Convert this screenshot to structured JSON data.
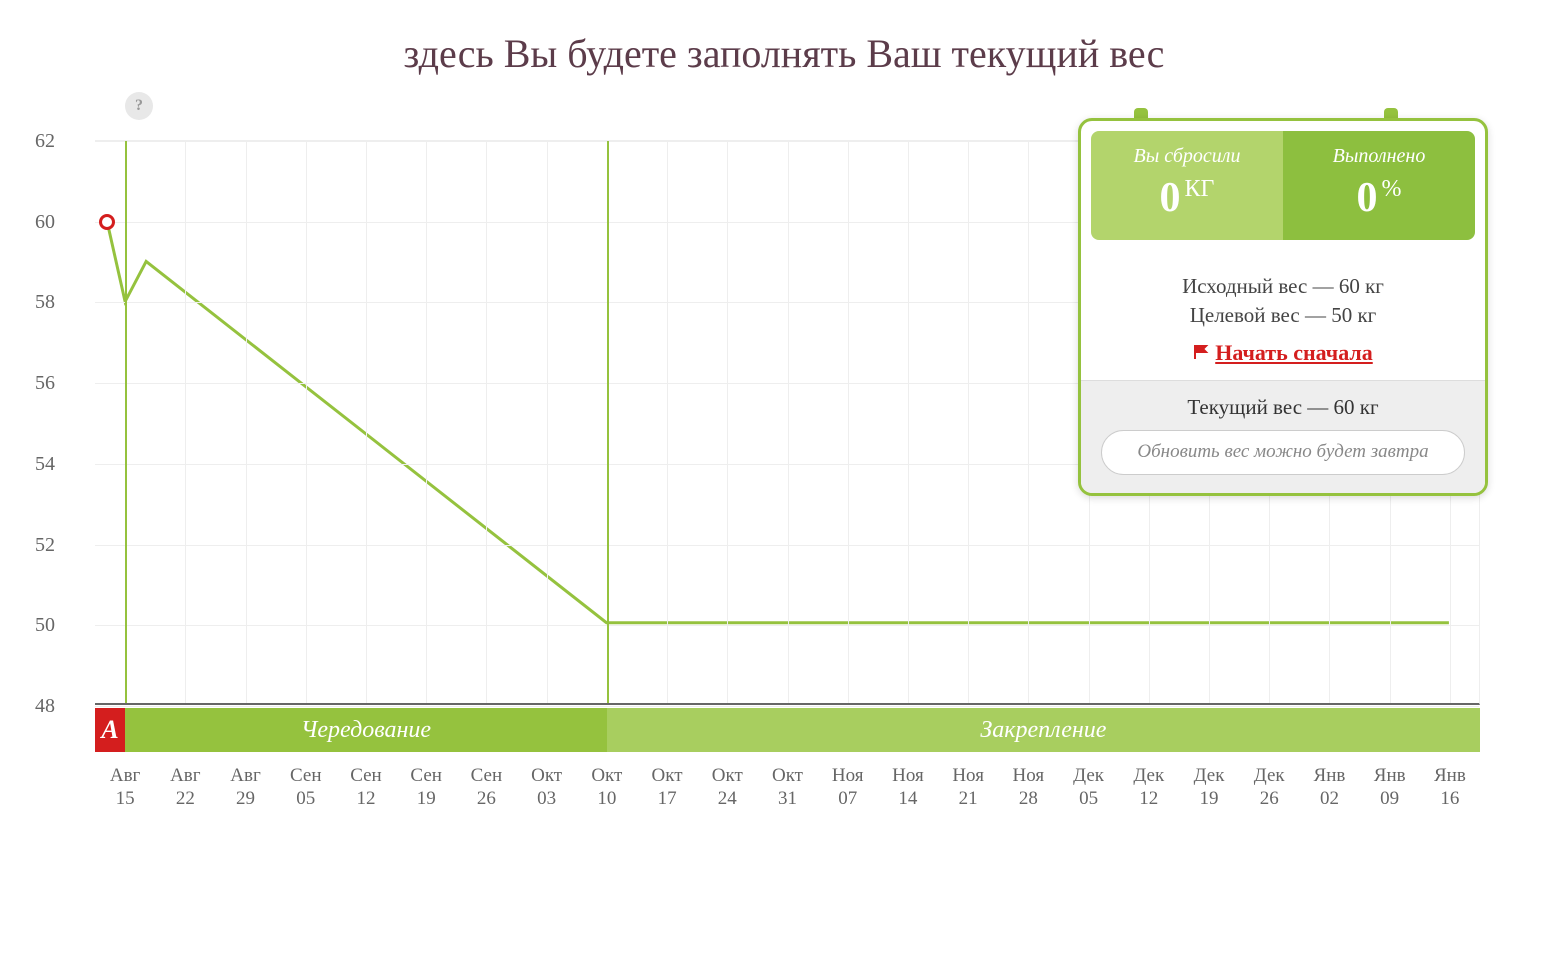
{
  "title": "здесь Вы будете заполнять Ваш текущий вес",
  "help_label": "?",
  "chart": {
    "type": "line",
    "ylim": [
      48,
      62
    ],
    "ytick_step": 2,
    "yticks": [
      48,
      50,
      52,
      54,
      56,
      58,
      60,
      62
    ],
    "grid_color": "#eeeeee",
    "background_color": "#ffffff",
    "phase_line_color": "#95c23e",
    "line_color": "#95c23e",
    "line_width": 3,
    "marker_color": "#d41e1e",
    "categories": [
      "Авг 15",
      "Авг 22",
      "Авг 29",
      "Сен 05",
      "Сен 12",
      "Сен 19",
      "Сен 26",
      "Окт 03",
      "Окт 10",
      "Окт 17",
      "Окт 24",
      "Окт 31",
      "Ноя 07",
      "Ноя 14",
      "Ноя 21",
      "Ноя 28",
      "Дек 05",
      "Дек 12",
      "Дек 19",
      "Дек 26",
      "Янв 02",
      "Янв 09",
      "Янв 16"
    ],
    "series": [
      {
        "x_idx": -0.3,
        "y": 60,
        "marker": true
      },
      {
        "x_idx": 0,
        "y": 58
      },
      {
        "x_idx": 0.35,
        "y": 59
      },
      {
        "x_idx": 8,
        "y": 50
      },
      {
        "x_idx": 22,
        "y": 50
      }
    ],
    "phase_boundaries_idx": [
      0,
      8
    ],
    "phases": [
      {
        "label": "А",
        "width_idx_start": -0.5,
        "width_idx_end": 0,
        "color": "#d41e1e",
        "is_letter": true
      },
      {
        "label": "Чередование",
        "width_idx_start": 0,
        "width_idx_end": 8,
        "color": "#95c23e"
      },
      {
        "label": "Закрепление",
        "width_idx_start": 8,
        "width_idx_end": 22.5,
        "color": "#a8ce5f"
      }
    ],
    "x_axis_color": "#666666"
  },
  "card": {
    "stats": {
      "lost": {
        "label": "Вы сбросили",
        "value": "0",
        "unit": "КГ",
        "bg_color": "#b3d46c"
      },
      "done": {
        "label": "Выполнено",
        "value": "0",
        "unit": "%",
        "bg_color": "#8dbf3f"
      }
    },
    "start_weight_label": "Исходный вес — 60 кг",
    "target_weight_label": "Целевой вес — 50 кг",
    "restart_label": "Начать сначала",
    "current_weight_label": "Текущий вес — 60 кг",
    "update_note": "Обновить вес можно будет завтра",
    "border_color": "#95c23e",
    "restart_color": "#d41e1e"
  }
}
